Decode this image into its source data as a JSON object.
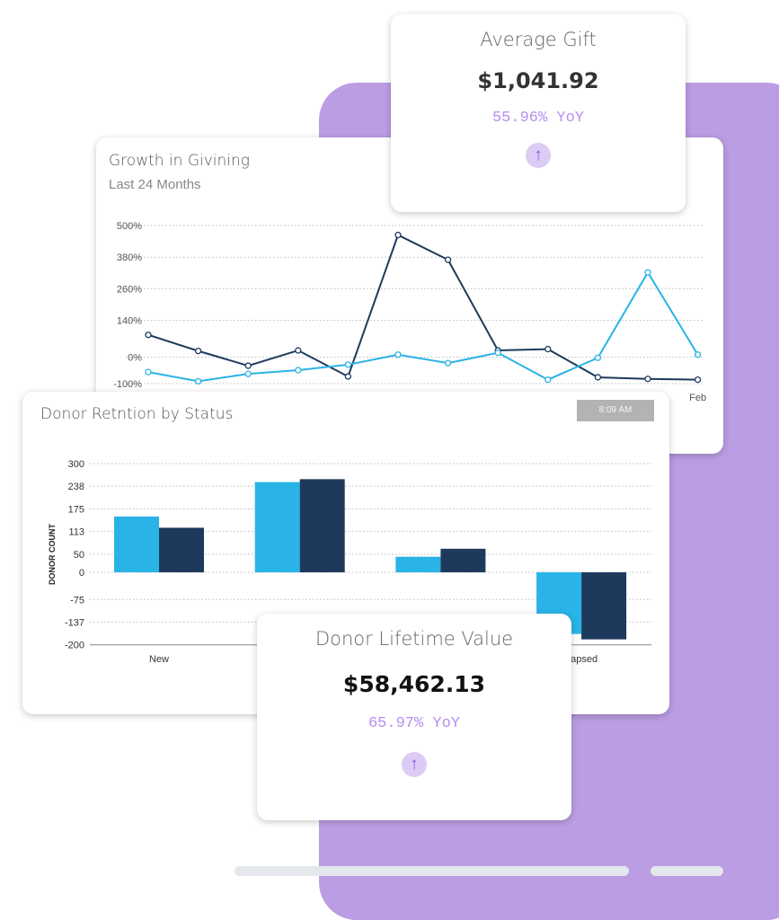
{
  "average_gift": {
    "title": "Average Gift",
    "value": "$1,041.92",
    "yoy": "55.96% YoY",
    "trend_icon": "arrow-up-icon"
  },
  "donor_lifetime_value": {
    "title": "Donor Lifetime Value",
    "value": "$58,462.13",
    "yoy": "65.97% YoY",
    "trend_icon": "arrow-up-icon"
  },
  "colors": {
    "accent": "#bb9de3",
    "light_series": "#2ab3e6",
    "dark_series": "#1d3a5c",
    "yoy_text": "#b58ef0"
  },
  "chart_data": [
    {
      "type": "line",
      "title": "Growth in Givining",
      "subtitle": "Last 24 Months",
      "x_labels": [
        "",
        "",
        "",
        "",
        "",
        "",
        "",
        "",
        "",
        "",
        "",
        "Feb"
      ],
      "y_ticks": [
        500,
        380,
        260,
        140,
        0,
        -100
      ],
      "y_tick_labels": [
        "500%",
        "380%",
        "260%",
        "140%",
        "0%",
        "-100%"
      ],
      "ylim": [
        -100,
        500
      ],
      "grid": true,
      "series": [
        {
          "color": "#1d3a5c",
          "values": [
            85,
            24,
            -32,
            26,
            -73,
            464,
            370,
            26,
            31,
            -76,
            -82,
            -85
          ]
        },
        {
          "color": "#2ab3e6",
          "values": [
            -56,
            -91,
            -63,
            -49,
            -28,
            10,
            -22,
            17,
            -85,
            -2,
            322,
            10
          ]
        }
      ]
    },
    {
      "type": "bar",
      "title": "Donor Retntion by Status",
      "timestamp": "8:09 AM",
      "ylabel": "DONOR COUNT",
      "categories": [
        "New",
        "",
        "",
        "Lapsed"
      ],
      "y_ticks": [
        300,
        238,
        175,
        113,
        50,
        0,
        -75,
        -137,
        -200
      ],
      "ylim": [
        -200,
        300
      ],
      "grid": true,
      "series": [
        {
          "color": "#2ab3e6",
          "values": [
            154,
            249,
            43,
            -170
          ]
        },
        {
          "color": "#1d3a5c",
          "values": [
            123,
            257,
            65,
            -185
          ]
        }
      ]
    }
  ]
}
